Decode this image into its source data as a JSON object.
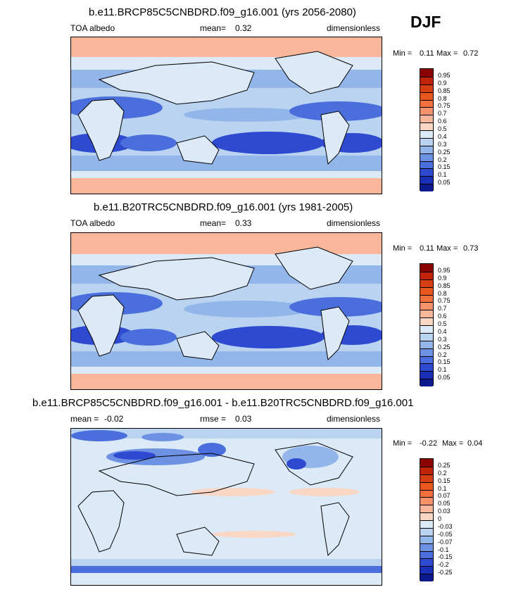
{
  "season": "DJF",
  "panels": [
    {
      "title": "b.e11.BRCP85C5CNBDRD.f09_g16.001 (yrs 2056-2080)",
      "left_label": "TOA albedo",
      "mean_label": "mean=",
      "mean_value": "0.32",
      "units": "dimensionless",
      "min_label": "Min =",
      "min_value": "0.11",
      "max_label": "Max =",
      "max_value": "0.72",
      "colorbar_labels": [
        "0.95",
        "0.9",
        "0.85",
        "0.8",
        "0.75",
        "0.7",
        "0.6",
        "0.5",
        "0.4",
        "0.3",
        "0.25",
        "0.2",
        "0.15",
        "0.1",
        "0.05"
      ]
    },
    {
      "title": "b.e11.B20TRC5CNBDRD.f09_g16.001 (yrs 1981-2005)",
      "left_label": "TOA albedo",
      "mean_label": "mean=",
      "mean_value": "0.33",
      "units": "dimensionless",
      "min_label": "Min =",
      "min_value": "0.11",
      "max_label": "Max =",
      "max_value": "0.73",
      "colorbar_labels": [
        "0.95",
        "0.9",
        "0.85",
        "0.8",
        "0.75",
        "0.7",
        "0.6",
        "0.5",
        "0.4",
        "0.3",
        "0.25",
        "0.2",
        "0.15",
        "0.1",
        "0.05"
      ]
    },
    {
      "title": "b.e11.BRCP85C5CNBDRD.f09_g16.001 - b.e11.B20TRC5CNBDRD.f09_g16.001",
      "left_label": "mean =",
      "left_value": "-0.02",
      "mid_label": "rmse =",
      "mid_value": "0.03",
      "units": "dimensionless",
      "min_label": "Min =",
      "min_value": "-0.22",
      "max_label": "Max =",
      "max_value": "0.04",
      "colorbar_labels": [
        "0.25",
        "0.2",
        "0.15",
        "0.1",
        "0.07",
        "0.05",
        "0.03",
        "0",
        "-0.03",
        "-0.05",
        "-0.07",
        "-0.1",
        "-0.15",
        "-0.2",
        "-0.25"
      ]
    }
  ],
  "colors": {
    "abs_scale": [
      "#8b0000",
      "#c0220a",
      "#d63e14",
      "#e9561e",
      "#f26f3e",
      "#f5926a",
      "#f8b69a",
      "#fad7c4",
      "#dce9f7",
      "#b9d3f1",
      "#93b6ea",
      "#6d92e3",
      "#4a6fdc",
      "#2d4ad1",
      "#1a2fb8",
      "#0c1a8e"
    ],
    "diff_scale": [
      "#8b0000",
      "#c0220a",
      "#d63e14",
      "#e9561e",
      "#f26f3e",
      "#f5926a",
      "#f8b69a",
      "#fad7c4",
      "#dce9f7",
      "#b9d3f1",
      "#93b6ea",
      "#6d92e3",
      "#4a6fdc",
      "#2d4ad1",
      "#1a2fb8",
      "#0c1a8e"
    ],
    "land_outline": "#000000"
  }
}
